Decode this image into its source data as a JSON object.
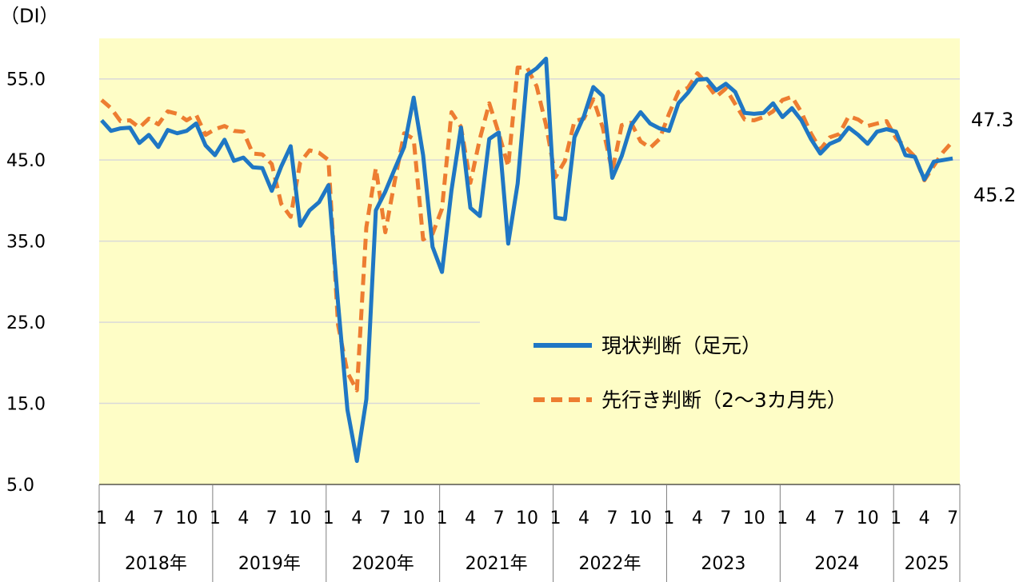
{
  "chart_data": {
    "type": "line",
    "unit_label": "（DI）",
    "ylim": [
      5,
      60
    ],
    "y_ticks": [
      "55.0",
      "45.0",
      "35.0",
      "25.0",
      "15.0",
      "5.0"
    ],
    "y_tick_values": [
      55,
      45,
      35,
      25,
      15,
      5
    ],
    "month_ticks": [
      "1",
      "4",
      "7",
      "10",
      "1",
      "4",
      "7",
      "10",
      "1",
      "4",
      "7",
      "10",
      "1",
      "4",
      "7",
      "10",
      "1",
      "4",
      "7",
      "10",
      "1",
      "4",
      "7",
      "10",
      "1",
      "4",
      "7",
      "10",
      "1",
      "4",
      "7"
    ],
    "month_tick_index": [
      0,
      3,
      6,
      9,
      12,
      15,
      18,
      21,
      24,
      27,
      30,
      33,
      36,
      39,
      42,
      45,
      48,
      51,
      54,
      57,
      60,
      63,
      66,
      69,
      72,
      75,
      78,
      81,
      84,
      87,
      90
    ],
    "years": [
      "2018年",
      "2019年",
      "2020年",
      "2021年",
      "2022年",
      "2023",
      "2024",
      "2025"
    ],
    "grid": true,
    "legend_position": "lower-right",
    "series": [
      {
        "name": "現状判断（足元）",
        "color": "#1f77c4",
        "dash": "solid",
        "end_label": "45.2",
        "values": [
          49.9,
          48.6,
          48.9,
          49.0,
          47.1,
          48.1,
          46.6,
          48.7,
          48.3,
          48.6,
          49.5,
          46.8,
          45.6,
          47.5,
          44.9,
          45.3,
          44.1,
          44.0,
          41.2,
          44.2,
          46.7,
          36.9,
          38.8,
          39.8,
          41.9,
          27.4,
          14.2,
          7.9,
          15.5,
          38.8,
          41.1,
          43.9,
          46.6,
          52.7,
          45.6,
          34.3,
          31.2,
          41.3,
          49.0,
          39.1,
          38.1,
          47.6,
          48.4,
          34.7,
          42.1,
          55.5,
          56.3,
          57.5,
          37.9,
          37.7,
          47.8,
          50.4,
          54.0,
          52.9,
          42.8,
          45.5,
          49.3,
          50.9,
          49.5,
          48.9,
          48.6,
          52.0,
          53.3,
          54.9,
          55.0,
          53.6,
          54.4,
          53.4,
          50.8,
          50.7,
          50.8,
          52.0,
          50.3,
          51.4,
          49.9,
          47.6,
          45.8,
          47.0,
          47.5,
          49.0,
          48.1,
          47.0,
          48.5,
          48.8,
          48.5,
          45.6,
          45.4,
          42.6,
          44.8,
          45.0,
          45.2
        ]
      },
      {
        "name": "先行き判断（2～3カ月先）",
        "color": "#ed7d31",
        "dash": "dashed",
        "end_label": "47.3",
        "values": [
          52.4,
          51.4,
          49.8,
          49.9,
          49.0,
          50.1,
          49.4,
          51.0,
          50.7,
          49.9,
          50.6,
          48.1,
          48.8,
          49.2,
          48.6,
          48.5,
          45.8,
          45.7,
          44.5,
          39.6,
          38.0,
          44.7,
          46.2,
          45.9,
          45.0,
          24.7,
          18.8,
          16.6,
          36.7,
          44.0,
          36.1,
          42.4,
          48.3,
          47.6,
          35.2,
          35.9,
          39.0,
          50.9,
          49.1,
          42.2,
          47.6,
          52.0,
          48.3,
          44.2,
          56.4,
          56.4,
          54.1,
          49.3,
          42.9,
          44.9,
          49.8,
          50.1,
          52.5,
          49.0,
          43.6,
          49.3,
          49.6,
          47.3,
          46.5,
          47.6,
          50.7,
          53.4,
          53.9,
          55.7,
          54.4,
          52.8,
          53.8,
          51.9,
          50.0,
          49.9,
          50.3,
          51.0,
          52.4,
          52.8,
          50.9,
          48.3,
          46.3,
          47.8,
          48.2,
          50.4,
          50.0,
          49.2,
          49.5,
          49.8,
          47.7,
          46.6,
          45.4,
          42.5,
          44.3,
          46.0,
          47.3
        ]
      }
    ]
  }
}
